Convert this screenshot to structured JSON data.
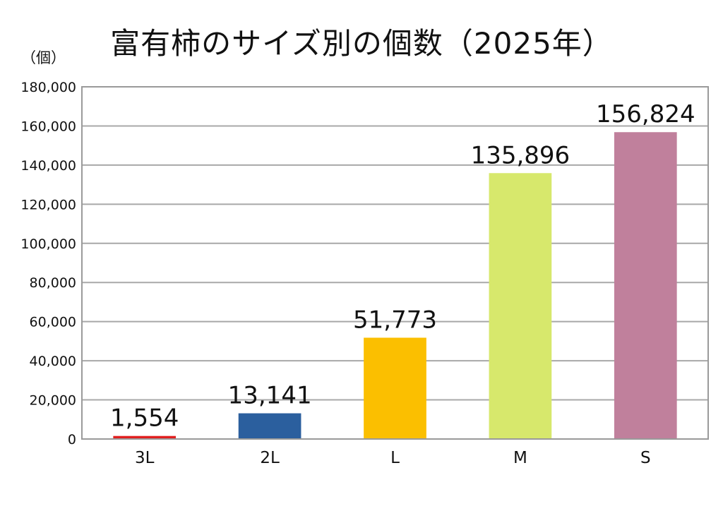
{
  "chart_data": {
    "type": "bar",
    "title": "富有柿のサイズ別の個数（2025年）",
    "unit": "（個）",
    "categories": [
      "3L",
      "2L",
      "L",
      "M",
      "S"
    ],
    "values": [
      1554,
      13141,
      51773,
      135896,
      156824
    ],
    "value_labels": [
      "1,554",
      "13,141",
      "51,773",
      "135,896",
      "156,824"
    ],
    "colors": [
      "#e02020",
      "#2b5f9e",
      "#fbbf00",
      "#d7e86c",
      "#c0809c"
    ],
    "ylim": [
      0,
      180000
    ],
    "yticks": [
      0,
      20000,
      40000,
      60000,
      80000,
      100000,
      120000,
      140000,
      160000,
      180000
    ],
    "ytick_labels": [
      "0",
      "20,000",
      "40,000",
      "60,000",
      "80,000",
      "100,000",
      "120,000",
      "140,000",
      "160,000",
      "180,000"
    ],
    "grid": true,
    "legend": "none"
  }
}
